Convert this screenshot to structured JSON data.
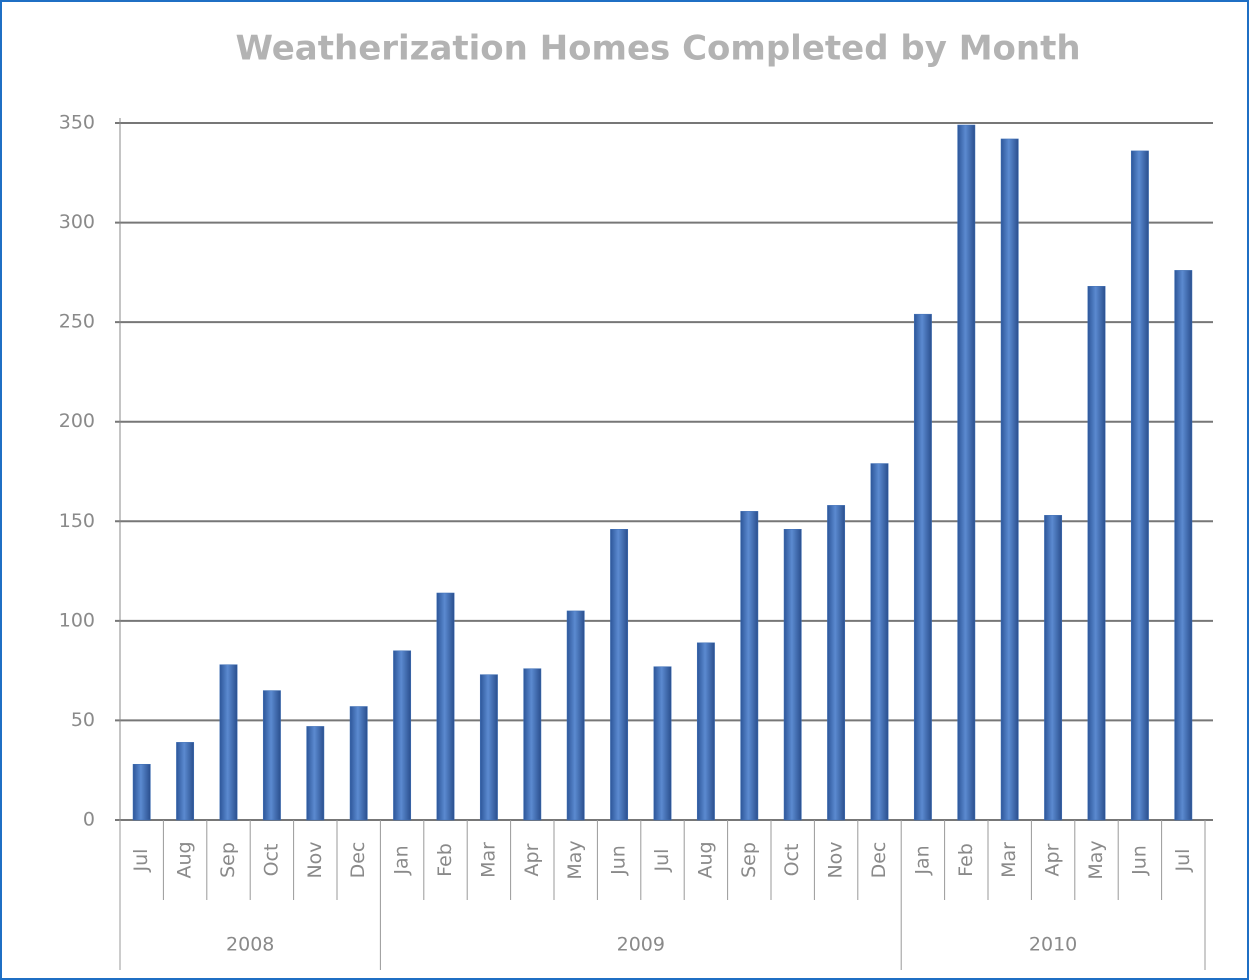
{
  "chart_data": {
    "type": "bar",
    "title": "Weatherization Homes Completed by Month",
    "groups": [
      {
        "label": "2008",
        "categories": [
          "Jul",
          "Aug",
          "Sep",
          "Oct",
          "Nov",
          "Dec"
        ],
        "values": [
          28,
          39,
          78,
          65,
          47,
          57
        ]
      },
      {
        "label": "2009",
        "categories": [
          "Jan",
          "Feb",
          "Mar",
          "Apr",
          "May",
          "Jun",
          "Jul",
          "Aug",
          "Sep",
          "Oct",
          "Nov",
          "Dec"
        ],
        "values": [
          85,
          114,
          73,
          76,
          105,
          146,
          77,
          89,
          155,
          146,
          158,
          179
        ]
      },
      {
        "label": "2010",
        "categories": [
          "Jan",
          "Feb",
          "Mar",
          "Apr",
          "May",
          "Jun",
          "Jul"
        ],
        "values": [
          254,
          349,
          342,
          153,
          268,
          336,
          276
        ]
      }
    ],
    "color": "#3f6fb5",
    "ylim": [
      0,
      350
    ],
    "yticks": [
      0,
      50,
      100,
      150,
      200,
      250,
      300,
      350
    ],
    "grid": true
  }
}
